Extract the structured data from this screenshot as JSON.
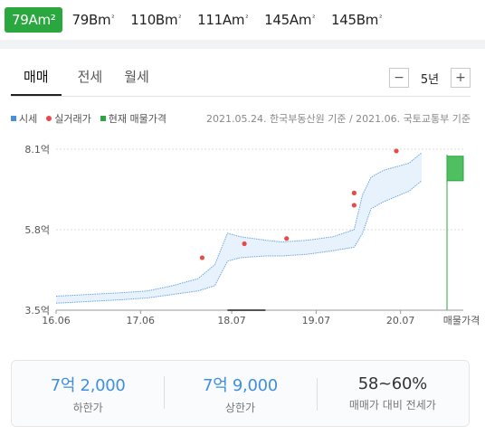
{
  "area_tabs": [
    {
      "num": "79A",
      "unit": "m²",
      "sup": "",
      "active": true
    },
    {
      "num": "79B",
      "unit": "m",
      "sup": "²",
      "active": false
    },
    {
      "num": "110B",
      "unit": "m",
      "sup": "²",
      "active": false
    },
    {
      "num": "111A",
      "unit": "m",
      "sup": "²",
      "active": false
    },
    {
      "num": "145A",
      "unit": "m",
      "sup": "²",
      "active": false
    },
    {
      "num": "145B",
      "unit": "m",
      "sup": "²",
      "active": false
    }
  ],
  "deal_tabs": [
    "매매",
    "전세",
    "월세"
  ],
  "period": {
    "minus": "−",
    "label": "5년",
    "plus": "+"
  },
  "legend": [
    {
      "label": "시세",
      "color": "#4a90d9",
      "shape": "square"
    },
    {
      "label": "실거래가",
      "color": "#e84a4a",
      "shape": "dot"
    },
    {
      "label": "현재 매물가격",
      "color": "#2ba740",
      "shape": "square"
    }
  ],
  "source_text": "2021.05.24. 한국부동산원 기준 / 2021.06. 국토교통부 기준",
  "chart_data": {
    "type": "area",
    "title": "",
    "xlabel": "",
    "ylabel": "",
    "x_ticks": [
      "16.06",
      "17.06",
      "18.07",
      "19.07",
      "20.07",
      "매물가격"
    ],
    "y_ticks": [
      "8.1억",
      "5.8억",
      "3.5억"
    ],
    "ylim": [
      3.5,
      8.1
    ],
    "grid": "horizontal dashed",
    "series": [
      {
        "name": "시세",
        "lower": [
          [
            2016.42,
            3.7
          ],
          [
            2017.2,
            3.8
          ],
          [
            2017.5,
            3.85
          ],
          [
            2017.8,
            3.95
          ],
          [
            2018.1,
            4.05
          ],
          [
            2018.3,
            4.2
          ],
          [
            2018.45,
            4.9
          ],
          [
            2018.6,
            5.0
          ],
          [
            2018.9,
            5.05
          ],
          [
            2019.1,
            5.05
          ],
          [
            2019.4,
            5.1
          ],
          [
            2019.7,
            5.2
          ],
          [
            2019.95,
            5.3
          ],
          [
            2020.05,
            5.7
          ],
          [
            2020.15,
            6.4
          ],
          [
            2020.3,
            6.6
          ],
          [
            2020.6,
            6.9
          ],
          [
            2020.75,
            7.2
          ]
        ],
        "upper": [
          [
            2016.42,
            3.9
          ],
          [
            2017.2,
            4.0
          ],
          [
            2017.5,
            4.05
          ],
          [
            2017.8,
            4.2
          ],
          [
            2018.1,
            4.4
          ],
          [
            2018.3,
            4.8
          ],
          [
            2018.45,
            5.7
          ],
          [
            2018.6,
            5.6
          ],
          [
            2018.9,
            5.5
          ],
          [
            2019.1,
            5.45
          ],
          [
            2019.4,
            5.5
          ],
          [
            2019.7,
            5.6
          ],
          [
            2019.95,
            5.8
          ],
          [
            2020.05,
            6.8
          ],
          [
            2020.15,
            7.3
          ],
          [
            2020.3,
            7.5
          ],
          [
            2020.6,
            7.7
          ],
          [
            2020.75,
            8.0
          ]
        ]
      },
      {
        "name": "실거래가",
        "points": [
          [
            2018.15,
            5.0
          ],
          [
            2018.65,
            5.4
          ],
          [
            2019.15,
            5.55
          ],
          [
            2019.95,
            6.5
          ],
          [
            2019.95,
            6.85
          ],
          [
            2020.45,
            8.05
          ]
        ]
      },
      {
        "name": "현재 매물가격",
        "range": [
          7.2,
          7.9
        ]
      }
    ]
  },
  "summary": [
    {
      "value": "7억 2,000",
      "label": "하한가",
      "style": "blue"
    },
    {
      "value": "7억 9,000",
      "label": "상한가",
      "style": "blue"
    },
    {
      "value": "58~60%",
      "label": "매매가 대비 전세가",
      "style": "dark"
    }
  ]
}
